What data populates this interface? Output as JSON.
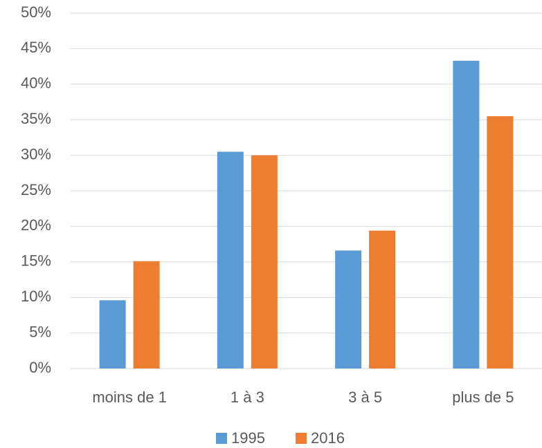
{
  "chart_data": {
    "type": "bar",
    "categories": [
      "moins de 1",
      "1 à 3",
      "3 à 5",
      "plus de 5"
    ],
    "series": [
      {
        "name": "1995",
        "color": "#5b9bd5",
        "values": [
          9.6,
          30.5,
          16.6,
          43.3
        ]
      },
      {
        "name": "2016",
        "color": "#ed7d31",
        "values": [
          15.1,
          30.0,
          19.4,
          35.5
        ]
      }
    ],
    "ylim": [
      0,
      50
    ],
    "yticks": [
      {
        "value": 0,
        "label": "0%"
      },
      {
        "value": 5,
        "label": "5%"
      },
      {
        "value": 10,
        "label": "10%"
      },
      {
        "value": 15,
        "label": "15%"
      },
      {
        "value": 20,
        "label": "20%"
      },
      {
        "value": 25,
        "label": "25%"
      },
      {
        "value": 30,
        "label": "30%"
      },
      {
        "value": 35,
        "label": "35%"
      },
      {
        "value": 40,
        "label": "40%"
      },
      {
        "value": 45,
        "label": "45%"
      },
      {
        "value": 50,
        "label": "50%"
      }
    ],
    "grid": true,
    "legend": "bottom"
  }
}
